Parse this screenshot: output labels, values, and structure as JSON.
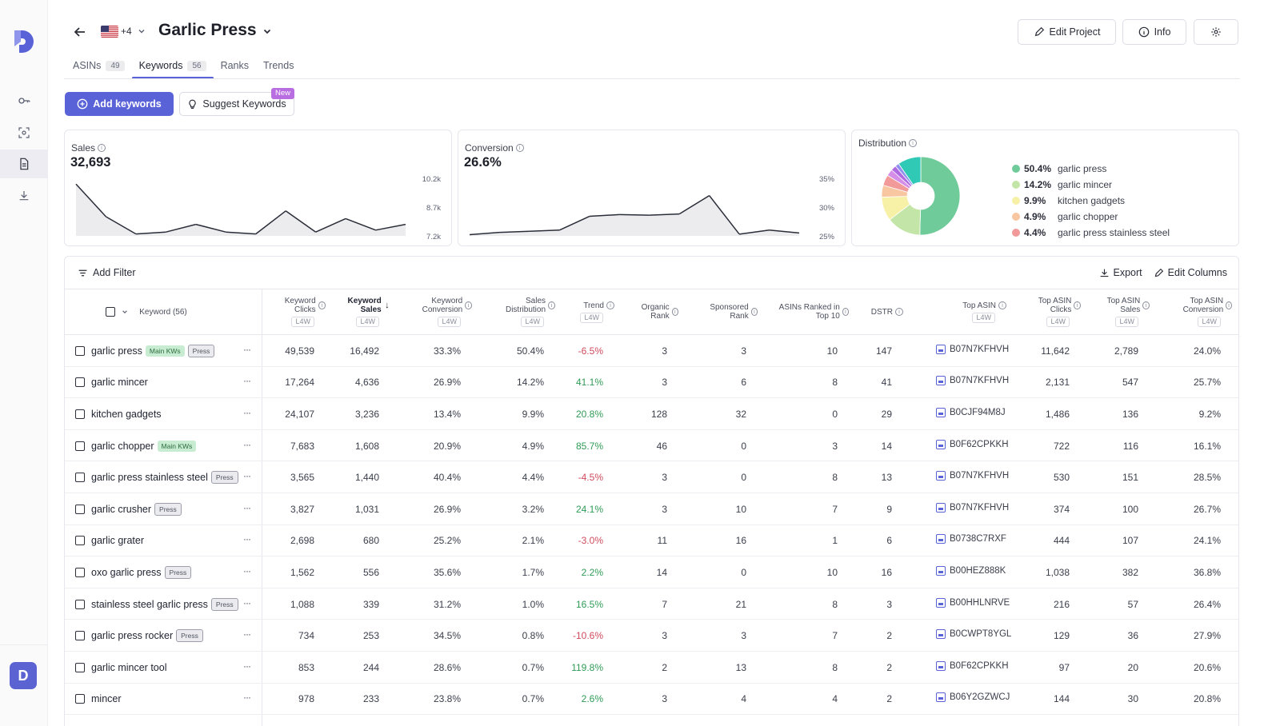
{
  "header": {
    "title": "Garlic Press",
    "marketplaces_more": "+4",
    "edit_project_label": "Edit Project",
    "info_label": "Info"
  },
  "tabs": [
    {
      "label": "ASINs",
      "count": "49"
    },
    {
      "label": "Keywords",
      "count": "56"
    },
    {
      "label": "Ranks"
    },
    {
      "label": "Trends"
    }
  ],
  "actions": {
    "add_keywords_label": "Add keywords",
    "suggest_keywords_label": "Suggest Keywords",
    "new_badge": "New"
  },
  "cards": {
    "sales": {
      "label": "Sales",
      "value": "32,693",
      "y_ticks": [
        "10.2k",
        "8.7k",
        "7.2k"
      ]
    },
    "conversion": {
      "label": "Conversion",
      "value": "26.6%",
      "y_ticks": [
        "35%",
        "30%",
        "25%"
      ]
    },
    "distribution": {
      "label": "Distribution"
    }
  },
  "chart_data": [
    {
      "type": "line",
      "title": "Sales",
      "x": [
        1,
        2,
        3,
        4,
        5,
        6,
        7,
        8,
        9,
        10,
        11,
        12
      ],
      "values": [
        9900,
        8200,
        7300,
        7400,
        7800,
        7400,
        7300,
        8500,
        7400,
        8100,
        7500,
        7800
      ],
      "ylim": [
        7200,
        10200
      ],
      "y_ticks": [
        "10.2k",
        "8.7k",
        "7.2k"
      ]
    },
    {
      "type": "line",
      "title": "Conversion",
      "x": [
        1,
        2,
        3,
        4,
        5,
        6,
        7,
        8,
        9,
        10,
        11,
        12
      ],
      "values": [
        25.2,
        25.6,
        25.8,
        26.0,
        28.4,
        28.7,
        28.6,
        28.8,
        32.0,
        25.3,
        26.0,
        25.5
      ],
      "ylim": [
        25,
        35
      ],
      "y_ticks": [
        "35%",
        "30%",
        "25%"
      ]
    },
    {
      "type": "pie",
      "title": "Distribution",
      "legend_position": "right",
      "slices": [
        {
          "label": "garlic press",
          "pct": "50.4%",
          "value": 50.4,
          "color": "#6fcb9a"
        },
        {
          "label": "garlic mincer",
          "pct": "14.2%",
          "value": 14.2,
          "color": "#c3e6a8"
        },
        {
          "label": "kitchen gadgets",
          "pct": "9.9%",
          "value": 9.9,
          "color": "#f7f1a8"
        },
        {
          "label": "garlic chopper",
          "pct": "4.9%",
          "value": 4.9,
          "color": "#f8c6a0"
        },
        {
          "label": "garlic press stainless steel",
          "pct": "4.4%",
          "value": 4.4,
          "color": "#f29a9a"
        }
      ],
      "other_slices_colors": [
        "#d58ee8",
        "#b06be0",
        "#8f8ff0",
        "#30c9b6"
      ],
      "other_values": [
        2.8,
        2.2,
        1.6,
        9.6
      ]
    }
  ],
  "table": {
    "add_filter_label": "Add Filter",
    "export_label": "Export",
    "edit_columns_label": "Edit Columns",
    "keyword_header": "Keyword (56)",
    "period_label": "L4W",
    "columns": [
      {
        "key": "clicks",
        "label": "Keyword Clicks",
        "l4w": true
      },
      {
        "key": "sales",
        "label": "Keyword Sales",
        "l4w": true,
        "sorted": "desc"
      },
      {
        "key": "conv",
        "label": "Keyword Conversion",
        "l4w": true
      },
      {
        "key": "dist",
        "label": "Sales Distribution",
        "l4w": true
      },
      {
        "key": "trend",
        "label": "Trend",
        "l4w": true
      },
      {
        "key": "organic",
        "label": "Organic Rank"
      },
      {
        "key": "sponsored",
        "label": "Sponsored Rank"
      },
      {
        "key": "top10",
        "label": "ASINs Ranked in Top 10"
      },
      {
        "key": "dstr",
        "label": "DSTR"
      },
      {
        "key": "asin",
        "label": "Top ASIN",
        "l4w": true
      },
      {
        "key": "asin_clicks",
        "label": "Top ASIN Clicks",
        "l4w": true
      },
      {
        "key": "asin_sales",
        "label": "Top ASIN Sales",
        "l4w": true
      },
      {
        "key": "asin_conv",
        "label": "Top ASIN Conversion",
        "l4w": true
      }
    ],
    "rows": [
      {
        "keyword": "garlic press",
        "tags": [
          "Main KWs",
          "Press"
        ],
        "clicks": "49,539",
        "sales": "16,492",
        "conv": "33.3%",
        "dist": "50.4%",
        "trend": "-6.5%",
        "organic": "3",
        "sponsored": "3",
        "top10": "10",
        "dstr": "147",
        "asin": "B07N7KFHVH",
        "asin_clicks": "11,642",
        "asin_sales": "2,789",
        "asin_conv": "24.0%"
      },
      {
        "keyword": "garlic mincer",
        "tags": [],
        "clicks": "17,264",
        "sales": "4,636",
        "conv": "26.9%",
        "dist": "14.2%",
        "trend": "41.1%",
        "organic": "3",
        "sponsored": "6",
        "top10": "8",
        "dstr": "41",
        "asin": "B07N7KFHVH",
        "asin_clicks": "2,131",
        "asin_sales": "547",
        "asin_conv": "25.7%"
      },
      {
        "keyword": "kitchen gadgets",
        "tags": [],
        "clicks": "24,107",
        "sales": "3,236",
        "conv": "13.4%",
        "dist": "9.9%",
        "trend": "20.8%",
        "organic": "128",
        "sponsored": "32",
        "top10": "0",
        "dstr": "29",
        "asin": "B0CJF94M8J",
        "asin_clicks": "1,486",
        "asin_sales": "136",
        "asin_conv": "9.2%"
      },
      {
        "keyword": "garlic chopper",
        "tags": [
          "Main KWs"
        ],
        "clicks": "7,683",
        "sales": "1,608",
        "conv": "20.9%",
        "dist": "4.9%",
        "trend": "85.7%",
        "organic": "46",
        "sponsored": "0",
        "top10": "3",
        "dstr": "14",
        "asin": "B0F62CPKKH",
        "asin_clicks": "722",
        "asin_sales": "116",
        "asin_conv": "16.1%"
      },
      {
        "keyword": "garlic press stainless steel",
        "tags": [
          "Press"
        ],
        "clicks": "3,565",
        "sales": "1,440",
        "conv": "40.4%",
        "dist": "4.4%",
        "trend": "-4.5%",
        "organic": "3",
        "sponsored": "0",
        "top10": "8",
        "dstr": "13",
        "asin": "B07N7KFHVH",
        "asin_clicks": "530",
        "asin_sales": "151",
        "asin_conv": "28.5%"
      },
      {
        "keyword": "garlic crusher",
        "tags": [
          "Press"
        ],
        "clicks": "3,827",
        "sales": "1,031",
        "conv": "26.9%",
        "dist": "3.2%",
        "trend": "24.1%",
        "organic": "3",
        "sponsored": "10",
        "top10": "7",
        "dstr": "9",
        "asin": "B07N7KFHVH",
        "asin_clicks": "374",
        "asin_sales": "100",
        "asin_conv": "26.7%"
      },
      {
        "keyword": "garlic grater",
        "tags": [],
        "clicks": "2,698",
        "sales": "680",
        "conv": "25.2%",
        "dist": "2.1%",
        "trend": "-3.0%",
        "organic": "11",
        "sponsored": "16",
        "top10": "1",
        "dstr": "6",
        "asin": "B0738C7RXF",
        "asin_clicks": "444",
        "asin_sales": "107",
        "asin_conv": "24.1%"
      },
      {
        "keyword": "oxo garlic press",
        "tags": [
          "Press"
        ],
        "clicks": "1,562",
        "sales": "556",
        "conv": "35.6%",
        "dist": "1.7%",
        "trend": "2.2%",
        "organic": "14",
        "sponsored": "0",
        "top10": "10",
        "dstr": "16",
        "asin": "B00HEZ888K",
        "asin_clicks": "1,038",
        "asin_sales": "382",
        "asin_conv": "36.8%"
      },
      {
        "keyword": "stainless steel garlic press",
        "tags": [
          "Press"
        ],
        "clicks": "1,088",
        "sales": "339",
        "conv": "31.2%",
        "dist": "1.0%",
        "trend": "16.5%",
        "organic": "7",
        "sponsored": "21",
        "top10": "8",
        "dstr": "3",
        "asin": "B00HHLNRVE",
        "asin_clicks": "216",
        "asin_sales": "57",
        "asin_conv": "26.4%"
      },
      {
        "keyword": "garlic press rocker",
        "tags": [
          "Press"
        ],
        "clicks": "734",
        "sales": "253",
        "conv": "34.5%",
        "dist": "0.8%",
        "trend": "-10.6%",
        "organic": "3",
        "sponsored": "3",
        "top10": "7",
        "dstr": "2",
        "asin": "B0CWPT8YGL",
        "asin_clicks": "129",
        "asin_sales": "36",
        "asin_conv": "27.9%"
      },
      {
        "keyword": "garlic mincer tool",
        "tags": [],
        "clicks": "853",
        "sales": "244",
        "conv": "28.6%",
        "dist": "0.7%",
        "trend": "119.8%",
        "organic": "2",
        "sponsored": "13",
        "top10": "8",
        "dstr": "2",
        "asin": "B0F62CPKKH",
        "asin_clicks": "97",
        "asin_sales": "20",
        "asin_conv": "20.6%"
      },
      {
        "keyword": "mincer",
        "tags": [],
        "clicks": "978",
        "sales": "233",
        "conv": "23.8%",
        "dist": "0.7%",
        "trend": "2.6%",
        "organic": "3",
        "sponsored": "4",
        "top10": "4",
        "dstr": "2",
        "asin": "B06Y2GZWCJ",
        "asin_clicks": "144",
        "asin_sales": "30",
        "asin_conv": "20.8%"
      }
    ]
  },
  "user": {
    "initial": "D"
  }
}
